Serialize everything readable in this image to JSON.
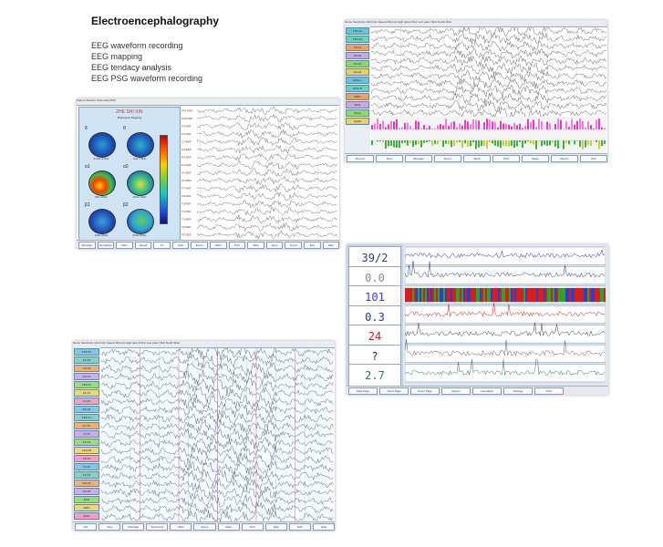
{
  "slide": {
    "title": "Electroencephalography",
    "bullets": [
      "EEG waveform recording",
      "EEG mapping",
      "EEG tendacy analysis",
      "EEG PSG waveform recording"
    ]
  },
  "screenshots": {
    "mapping": {
      "header": "Patient   Window   Tools   Help   MAP",
      "brand": "ZHE SHI XIN",
      "subtitle": "Brainwave Mapping",
      "maps": [
        {
          "label": "δ",
          "caption": "0.5Hz-3.5Hz"
        },
        {
          "label": "θ",
          "caption": "4Hz-7.5Hz"
        },
        {
          "label": "α1",
          "caption": "8Hz-10Hz"
        },
        {
          "label": "α2",
          "caption": "10Hz-13Hz"
        },
        {
          "label": "β1",
          "caption": "13Hz-20Hz"
        },
        {
          "label": "β2",
          "caption": "20Hz-30Hz"
        }
      ],
      "channels": [
        "FP1-REF",
        "FP2-REF",
        "F3-REF",
        "F4-REF",
        "C3-REF",
        "C4-REF",
        "P3-REF",
        "P4-REF",
        "O1-REF",
        "O2-REF",
        "F7-REF",
        "F8-REF",
        "T3-REF",
        "T4-REF",
        "T5-REF",
        "T6-REF",
        "FZ-REF"
      ],
      "toolbar": [
        "Montage",
        "Sensitivity",
        "Filter",
        "Speed",
        "TC",
        "Gain",
        "Event",
        "Mark",
        "Print",
        "Map",
        "Spec",
        "Trend",
        "Exit",
        "Help"
      ]
    },
    "waveform": {
      "header": "Name   Sensitivity 10uV/mm   Speed 15mm/s   High pass 0.5Hz   Low pass 70Hz   Notch Filter",
      "channels": [
        "FP1-F3",
        "F3-C3",
        "C3-P3",
        "P3-O1",
        "FP2-F4",
        "F4-C4",
        "C4-P4",
        "P4-O2",
        "FP1-F7",
        "F7-T3",
        "T3-T5",
        "T5-O1",
        "FP2-F8",
        "F8-T4",
        "T4-T6",
        "T6-O2",
        "FZ-CZ",
        "CZ-PZ",
        "ECG",
        "EMG",
        "EOG"
      ],
      "toolbar": [
        "File",
        "View",
        "Montage",
        "Sensitivity",
        "Filter",
        "Event",
        "Mark",
        "Print",
        "Map",
        "Edit",
        "Help"
      ]
    },
    "psg": {
      "header": "Name   Sensitivity 10uV/mm   Speed 15mm/s   High pass 0.5Hz   Low pass 70Hz   Notch Filter",
      "channels": [
        "FP1-A1",
        "FP2-A2",
        "C3-A1",
        "C4-A2",
        "O1-A1",
        "O2-A2",
        "EOG-L",
        "EOG-R",
        "EMG",
        "ECG",
        "Resp",
        "SpO2"
      ],
      "toolbar": [
        "Record",
        "Scan",
        "Montage",
        "Event",
        "Mark",
        "Print",
        "Stage",
        "Report",
        "Exit"
      ]
    },
    "trend": {
      "readouts": [
        {
          "value": "39/2",
          "color": "#2a3d7a"
        },
        {
          "value": "0.0",
          "color": "#8a8a8a"
        },
        {
          "value": "101",
          "color": "#3b3bd6"
        },
        {
          "value": "0.3",
          "color": "#2a3d7a"
        },
        {
          "value": "24",
          "color": "#c02020"
        },
        {
          "value": "?",
          "color": "#333333"
        },
        {
          "value": "2.7",
          "color": "#2f7a4f"
        }
      ],
      "toolbar": [
        "Raw Page",
        "Trend Page",
        "Event Page",
        "Report",
        "Annotation",
        "Settings",
        "Print"
      ]
    }
  }
}
